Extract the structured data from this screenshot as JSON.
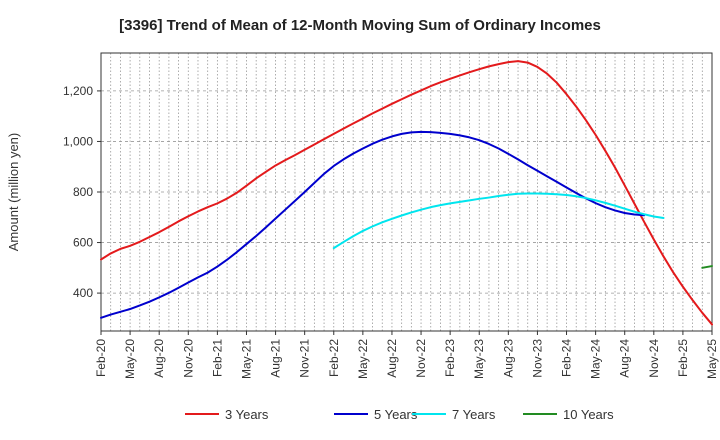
{
  "chart_data": {
    "type": "line",
    "title": "[3396]  Trend of Mean of 12-Month Moving Sum of Ordinary Incomes",
    "xlabel": "",
    "ylabel": "Amount (million yen)",
    "x_tick_labels": [
      "Feb-20",
      "May-20",
      "Aug-20",
      "Nov-20",
      "Feb-21",
      "May-21",
      "Aug-21",
      "Nov-21",
      "Feb-22",
      "May-22",
      "Aug-22",
      "Nov-22",
      "Feb-23",
      "May-23",
      "Aug-23",
      "Nov-23",
      "Feb-24",
      "May-24",
      "Aug-24",
      "Nov-24",
      "Feb-25",
      "May-25"
    ],
    "y_ticks": [
      400,
      600,
      800,
      1000,
      1200
    ],
    "y_tick_labels": [
      "400",
      "600",
      "800",
      "1,000",
      "1,200"
    ],
    "ylim": [
      250,
      1350
    ],
    "xlim": [
      0,
      63
    ],
    "grid": true,
    "legend_position": "bottom",
    "series": [
      {
        "name": "3 Years",
        "color": "#e31a1c",
        "start_index": 0,
        "values": [
          533,
          557,
          575,
          587,
          603,
          622,
          641,
          662,
          684,
          704,
          723,
          740,
          755,
          774,
          797,
          825,
          854,
          880,
          905,
          926,
          946,
          967,
          988,
          1009,
          1030,
          1051,
          1071,
          1091,
          1111,
          1130,
          1149,
          1167,
          1185,
          1202,
          1219,
          1234,
          1248,
          1261,
          1274,
          1286,
          1297,
          1306,
          1314,
          1318,
          1312,
          1295,
          1268,
          1232,
          1187,
          1138,
          1084,
          1026,
          963,
          897,
          826,
          754,
          682,
          612,
          545,
          482,
          425,
          372,
          322,
          276
        ]
      },
      {
        "name": "5 Years",
        "color": "#0000cd",
        "start_index": 0,
        "values": [
          302,
          315,
          326,
          337,
          351,
          366,
          383,
          401,
          421,
          442,
          462,
          481,
          505,
          532,
          562,
          594,
          626,
          660,
          695,
          730,
          765,
          800,
          836,
          872,
          903,
          929,
          952,
          972,
          991,
          1007,
          1020,
          1030,
          1036,
          1038,
          1037,
          1034,
          1030,
          1024,
          1016,
          1005,
          990,
          972,
          951,
          929,
          906,
          884,
          862,
          840,
          818,
          796,
          775,
          756,
          740,
          727,
          717,
          711,
          708
        ]
      },
      {
        "name": "7 Years",
        "color": "#00e5ee",
        "start_index": 24,
        "values": [
          578,
          602,
          625,
          646,
          664,
          680,
          694,
          707,
          719,
          730,
          740,
          748,
          755,
          761,
          767,
          773,
          778,
          784,
          789,
          793,
          794,
          794,
          793,
          791,
          788,
          783,
          776,
          767,
          757,
          746,
          734,
          722,
          712,
          703,
          697
        ]
      },
      {
        "name": "10 Years",
        "color": "#228b22",
        "start_index": 62,
        "values": [
          500,
          507
        ]
      }
    ]
  }
}
